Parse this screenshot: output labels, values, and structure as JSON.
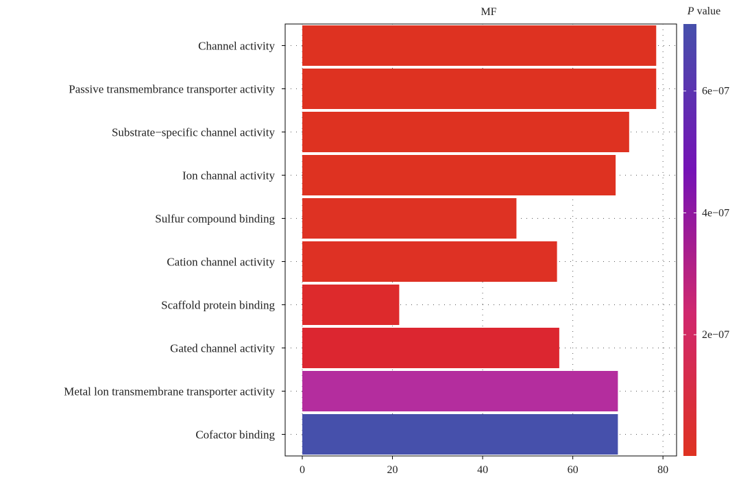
{
  "chart_data": {
    "type": "bar",
    "orientation": "horizontal",
    "title": "MF",
    "xlabel": "",
    "ylabel": "",
    "xlim": [
      0,
      82
    ],
    "xticks": [
      0,
      20,
      40,
      60,
      80
    ],
    "grid": true,
    "categories": [
      "Channel activity",
      "Passive transmembrance transporter activity",
      "Substrate−specific channel activity",
      "Ion channal activity",
      "Sulfur compound binding",
      "Cation channel activity",
      "Scaffold protein binding",
      "Gated channel activity",
      "Metal lon transmembrane transporter activity",
      "Cofactor binding"
    ],
    "values": [
      78.5,
      78.5,
      72.5,
      69.5,
      47.5,
      56.5,
      21.5,
      57,
      70,
      70
    ],
    "p_values": [
      1e-09,
      1e-09,
      2e-09,
      3e-09,
      4e-09,
      8e-09,
      5e-08,
      6e-08,
      2.9e-07,
      7e-07
    ],
    "colors": [
      "#de3221",
      "#de3221",
      "#de3221",
      "#de3221",
      "#de3223",
      "#de3124",
      "#dd2a2c",
      "#dc2630",
      "#b42d9e",
      "#4650ab"
    ],
    "legend": {
      "title_italic": "P",
      "title_rest": " value",
      "placement": "right",
      "range": [
        1e-09,
        7.1e-07
      ],
      "ticks": [
        {
          "value": 6e-07,
          "label": "6e−07"
        },
        {
          "value": 4e-07,
          "label": "4e−07"
        },
        {
          "value": 2e-07,
          "label": "2e−07"
        }
      ],
      "gradient_colors": [
        "#de3221",
        "#d0286e",
        "#7512b6",
        "#4650ab"
      ]
    }
  }
}
